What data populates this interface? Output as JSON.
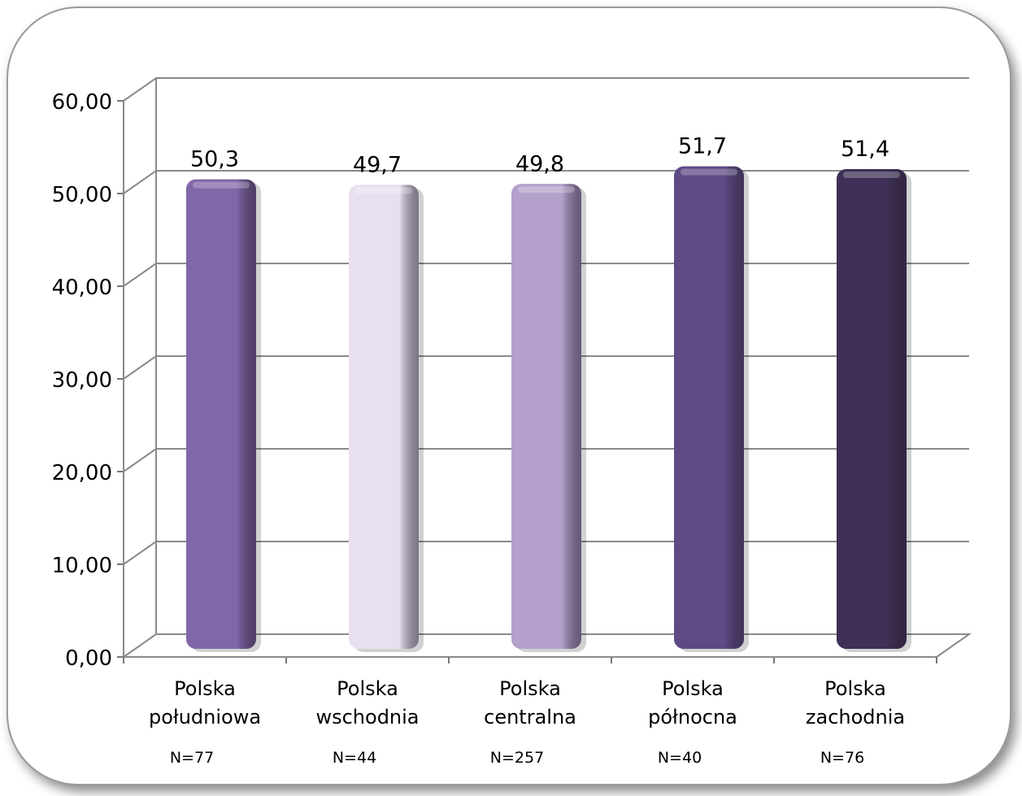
{
  "chart_data": {
    "type": "bar",
    "categories": [
      [
        "Polska",
        "południowa"
      ],
      [
        "Polska",
        "wschodnia"
      ],
      [
        "Polska",
        "centralna"
      ],
      [
        "Polska",
        "północna"
      ],
      [
        "Polska",
        "zachodnia"
      ]
    ],
    "values": [
      50.3,
      49.7,
      49.8,
      51.7,
      51.4
    ],
    "value_labels": [
      "50,3",
      "49,7",
      "49,8",
      "51,7",
      "51,4"
    ],
    "sample_sizes": [
      "N=77",
      "N=44",
      "N=257",
      "N=40",
      "N=76"
    ],
    "bar_colors": [
      "#8166a8",
      "#e8e0f0",
      "#b3a0cb",
      "#5e4a85",
      "#3d2f55"
    ],
    "y_ticks": [
      "0,00",
      "10,00",
      "20,00",
      "30,00",
      "40,00",
      "50,00",
      "60,00"
    ],
    "ylim": [
      0,
      60
    ],
    "grid": true,
    "title": "",
    "xlabel": "",
    "ylabel": ""
  }
}
